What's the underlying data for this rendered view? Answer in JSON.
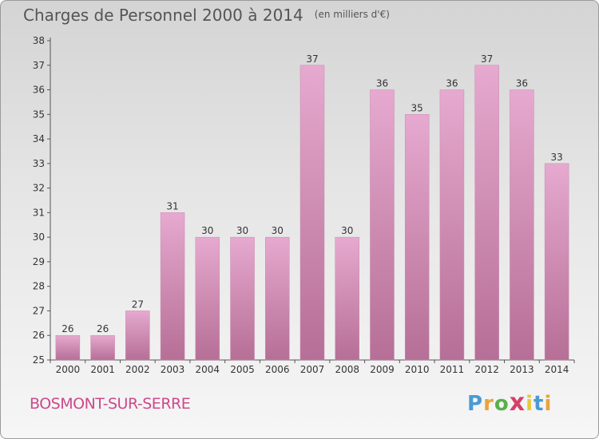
{
  "header": {
    "title": "Charges de Personnel 2000 à 2014",
    "subtitle": "(en milliers d'€)"
  },
  "footer": {
    "commune": "BOSMONT-SUR-SERRE",
    "logo_text": "Proxiti"
  },
  "colors": {
    "bar_top": "#e6a9cf",
    "bar_bottom": "#b66f96",
    "commune_text": "#cc4a8c"
  },
  "chart_data": {
    "type": "bar",
    "title": "Charges de Personnel 2000 à 2014",
    "subtitle": "(en milliers d'€)",
    "xlabel": "",
    "ylabel": "",
    "categories": [
      "2000",
      "2001",
      "2002",
      "2003",
      "2004",
      "2005",
      "2006",
      "2007",
      "2008",
      "2009",
      "2010",
      "2011",
      "2012",
      "2013",
      "2014"
    ],
    "values": [
      26,
      26,
      27,
      31,
      30,
      30,
      30,
      37,
      30,
      36,
      35,
      36,
      37,
      36,
      33
    ],
    "ylim": [
      25,
      38
    ],
    "yticks": [
      25,
      26,
      27,
      28,
      29,
      30,
      31,
      32,
      33,
      34,
      35,
      36,
      37,
      38
    ],
    "grid": false,
    "legend": "none"
  }
}
